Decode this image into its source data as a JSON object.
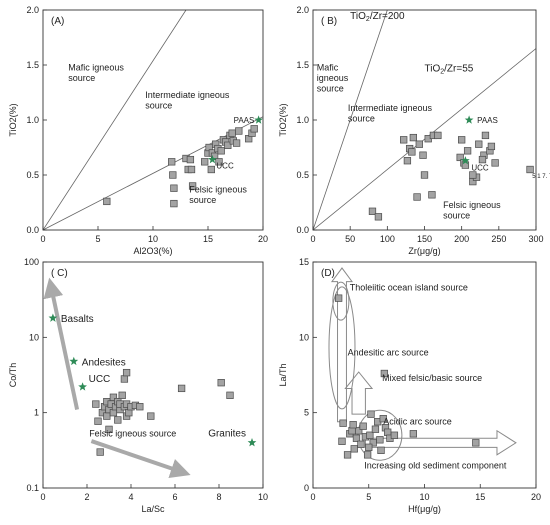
{
  "chart_data": [
    {
      "panel": "(A)",
      "type": "scatter",
      "xlabel": "Al2O3(%)",
      "ylabel": "TiO2(%)",
      "xlim": [
        0,
        20
      ],
      "ylim": [
        0,
        2.0
      ],
      "xticks": [
        0,
        5,
        10,
        15,
        20
      ],
      "yticks": [
        0,
        0.5,
        1.0,
        1.5,
        2.0
      ],
      "ytick_labels": [
        "0.0",
        "0.5",
        "1.0",
        "1.5",
        "2.0"
      ],
      "lines": [
        {
          "from": [
            0,
            0
          ],
          "to": [
            13,
            2.0
          ]
        },
        {
          "from": [
            0,
            0
          ],
          "to": [
            20,
            1.03
          ]
        }
      ],
      "region_labels": [
        {
          "lines": [
            "Mafic igneous",
            "source"
          ],
          "x": 2.3,
          "y": 1.45
        },
        {
          "lines": [
            "Intermediate igneous",
            "source"
          ],
          "x": 9.3,
          "y": 1.2
        },
        {
          "lines": [
            "Felsic igneous",
            "source"
          ],
          "x": 13.3,
          "y": 0.34
        }
      ],
      "samples": [
        [
          5.8,
          0.26
        ],
        [
          11.7,
          0.62
        ],
        [
          11.8,
          0.5
        ],
        [
          11.9,
          0.38
        ],
        [
          11.9,
          0.24
        ],
        [
          13,
          0.65
        ],
        [
          13.2,
          0.55
        ],
        [
          13.4,
          0.64
        ],
        [
          13.5,
          0.55
        ],
        [
          13.6,
          0.4
        ],
        [
          14.7,
          0.62
        ],
        [
          15,
          0.7
        ],
        [
          15.1,
          0.75
        ],
        [
          15.3,
          0.55
        ],
        [
          15.4,
          0.7
        ],
        [
          15.6,
          0.67
        ],
        [
          15.7,
          0.78
        ],
        [
          15.9,
          0.74
        ],
        [
          16.2,
          0.72
        ],
        [
          16.4,
          0.82
        ],
        [
          16.6,
          0.8
        ],
        [
          16.8,
          0.77
        ],
        [
          17,
          0.86
        ],
        [
          17.2,
          0.88
        ],
        [
          17.3,
          0.81
        ],
        [
          17.6,
          0.79
        ],
        [
          17.8,
          0.9
        ],
        [
          18.7,
          0.83
        ],
        [
          19,
          0.88
        ],
        [
          19.2,
          0.92
        ],
        [
          16,
          0.62
        ]
      ],
      "references": [
        {
          "label": "PAAS",
          "x": 19.6,
          "y": 1.0,
          "color": "#2e8b57"
        },
        {
          "label": "UCC",
          "x": 15.4,
          "y": 0.64,
          "color": "#2e8b57"
        }
      ]
    },
    {
      "panel": "( B)",
      "type": "scatter",
      "xlabel": "Zr(μg/g)",
      "ylabel": "TiO2(%)",
      "xlim": [
        0,
        300
      ],
      "ylim": [
        0,
        2.0
      ],
      "xticks": [
        0,
        50,
        100,
        150,
        200,
        250,
        300
      ],
      "yticks": [
        0,
        0.5,
        1.0,
        1.5,
        2.0
      ],
      "ytick_labels": [
        "0.0",
        "0.5",
        "1.0",
        "1.5",
        "2.0"
      ],
      "lines": [
        {
          "label": "TiO2/Zr=200",
          "from": [
            0,
            0
          ],
          "to": [
            100,
            2.0
          ]
        },
        {
          "label": "TiO2/Zr=55",
          "from": [
            0,
            0
          ],
          "to": [
            300,
            1.65
          ]
        }
      ],
      "region_labels": [
        {
          "lines": [
            "Mafic",
            "igneous",
            "source"
          ],
          "x": 5,
          "y": 1.45
        },
        {
          "lines": [
            "Intermediate igneous",
            "source"
          ],
          "x": 47,
          "y": 1.08
        },
        {
          "lines": [
            "Felsic igneous",
            "source"
          ],
          "x": 175,
          "y": 0.2
        }
      ],
      "samples": [
        [
          80,
          0.17
        ],
        [
          88,
          0.12
        ],
        [
          122,
          0.82
        ],
        [
          127,
          0.63
        ],
        [
          130,
          0.74
        ],
        [
          133,
          0.71
        ],
        [
          135,
          0.84
        ],
        [
          140,
          0.3
        ],
        [
          143,
          0.78
        ],
        [
          148,
          0.68
        ],
        [
          150,
          0.5
        ],
        [
          155,
          0.83
        ],
        [
          160,
          0.32
        ],
        [
          162,
          0.86
        ],
        [
          168,
          0.86
        ],
        [
          198,
          0.66
        ],
        [
          200,
          0.82
        ],
        [
          203,
          0.61
        ],
        [
          205,
          0.59
        ],
        [
          208,
          0.72
        ],
        [
          215,
          0.44
        ],
        [
          220,
          0.48
        ],
        [
          223,
          0.78
        ],
        [
          230,
          0.68
        ],
        [
          232,
          0.86
        ],
        [
          238,
          0.72
        ],
        [
          240,
          0.76
        ],
        [
          245,
          0.61
        ],
        [
          292,
          0.55
        ],
        [
          215,
          0.5
        ],
        [
          228,
          0.64
        ]
      ],
      "point_annotations": [
        {
          "text": "5 1 7. 7",
          "x": 295,
          "y": 0.5
        }
      ],
      "references": [
        {
          "label": "PAAS",
          "x": 210,
          "y": 1.0,
          "color": "#2e8b57"
        },
        {
          "label": "UCC",
          "x": 205,
          "y": 0.63,
          "color": "#2e8b57"
        }
      ]
    },
    {
      "panel": "( C)",
      "type": "scatter",
      "xlabel": "La/Sc",
      "ylabel": "Co/Th",
      "xlim": [
        0,
        10
      ],
      "ylim": [
        0.1,
        100
      ],
      "yscale": "log",
      "xticks": [
        0,
        2,
        4,
        6,
        8,
        10
      ],
      "yticks": [
        0.1,
        1,
        10,
        100
      ],
      "ytick_labels": [
        "0.1",
        "1",
        "10",
        "100"
      ],
      "samples": [
        [
          2.5,
          0.77
        ],
        [
          2.6,
          0.3
        ],
        [
          2.7,
          1.0
        ],
        [
          2.8,
          1.2
        ],
        [
          2.9,
          1.4
        ],
        [
          2.9,
          0.9
        ],
        [
          3.0,
          1.1
        ],
        [
          3.1,
          1.3
        ],
        [
          3.2,
          1.0
        ],
        [
          3.2,
          1.6
        ],
        [
          3.3,
          1.2
        ],
        [
          3.4,
          1.4
        ],
        [
          3.4,
          0.8
        ],
        [
          3.5,
          1.1
        ],
        [
          3.5,
          1.3
        ],
        [
          3.6,
          1.7
        ],
        [
          3.7,
          2.8
        ],
        [
          3.7,
          1.2
        ],
        [
          3.8,
          1.3
        ],
        [
          3.8,
          0.9
        ],
        [
          3.9,
          1.0
        ],
        [
          4.0,
          1.2
        ],
        [
          4.2,
          1.25
        ],
        [
          4.4,
          1.2
        ],
        [
          4.9,
          0.9
        ],
        [
          6.3,
          2.1
        ],
        [
          8.1,
          2.5
        ],
        [
          8.5,
          1.7
        ],
        [
          2.4,
          1.3
        ],
        [
          3.0,
          0.6
        ],
        [
          3.8,
          3.4
        ]
      ],
      "references": [
        {
          "label": "Basalts",
          "x": 0.45,
          "y": 18,
          "color": "#2e8b57"
        },
        {
          "label": "Andesites",
          "x": 1.4,
          "y": 4.8,
          "color": "#2e8b57"
        },
        {
          "label": "UCC",
          "x": 1.8,
          "y": 2.2,
          "color": "#2e8b57"
        },
        {
          "label": "Granites",
          "x": 9.5,
          "y": 0.4,
          "color": "#2e8b57"
        }
      ],
      "region_labels": [
        {
          "lines": [
            "Felsic igneous source"
          ],
          "x": 2.1,
          "y": 0.48
        }
      ],
      "arrows": [
        {
          "from": [
            1.55,
            1.1
          ],
          "to": [
            0.35,
            50
          ]
        },
        {
          "from": [
            2.2,
            0.42
          ],
          "to": [
            6.4,
            0.16
          ]
        }
      ]
    },
    {
      "panel": "(D)",
      "type": "scatter",
      "xlabel": "Hf(μg/g)",
      "ylabel": "La/Th",
      "xlim": [
        0,
        20
      ],
      "ylim": [
        0,
        15
      ],
      "xticks": [
        0,
        5,
        10,
        15,
        20
      ],
      "yticks": [
        0,
        5,
        10,
        15
      ],
      "ytick_labels": [
        "0",
        "5",
        "10",
        "15"
      ],
      "region_labels": [
        {
          "lines": [
            "Tholeiitic ocean island source"
          ],
          "x": 3.3,
          "y": 13.1
        },
        {
          "lines": [
            "Andesitic arc source"
          ],
          "x": 3.1,
          "y": 8.8
        },
        {
          "lines": [
            "Mixed felsic/basic source"
          ],
          "x": 6.2,
          "y": 7.1
        },
        {
          "lines": [
            "Acidic arc source"
          ],
          "x": 6.3,
          "y": 4.2
        },
        {
          "lines": [
            "Increasing old sediment component"
          ],
          "x": 4.6,
          "y": 1.3
        }
      ],
      "samples": [
        [
          2.3,
          12.6
        ],
        [
          2.6,
          3.1
        ],
        [
          2.7,
          4.3
        ],
        [
          3.1,
          2.2
        ],
        [
          3.3,
          3.6
        ],
        [
          3.5,
          3.8
        ],
        [
          3.7,
          2.6
        ],
        [
          3.9,
          3.3
        ],
        [
          4.1,
          3.8
        ],
        [
          4.3,
          2.9
        ],
        [
          4.5,
          4.1
        ],
        [
          4.7,
          3.4
        ],
        [
          4.9,
          2.2
        ],
        [
          5.1,
          3.5
        ],
        [
          5.2,
          4.9
        ],
        [
          5.4,
          3.0
        ],
        [
          5.6,
          3.9
        ],
        [
          5.8,
          4.4
        ],
        [
          6.0,
          3.2
        ],
        [
          6.1,
          2.5
        ],
        [
          6.3,
          4.6
        ],
        [
          6.4,
          7.6
        ],
        [
          6.5,
          4.0
        ],
        [
          6.7,
          3.7
        ],
        [
          6.9,
          3.3
        ],
        [
          7.3,
          3.5
        ],
        [
          9.0,
          3.6
        ],
        [
          14.6,
          3.0
        ],
        [
          3.6,
          4.2
        ],
        [
          5.0,
          2.7
        ]
      ]
    }
  ]
}
